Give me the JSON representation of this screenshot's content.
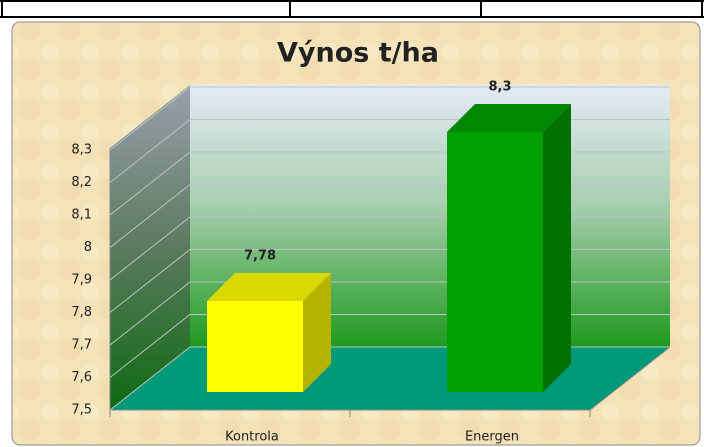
{
  "chart_data": {
    "type": "bar3d",
    "title": "Výnos t/ha",
    "categories": [
      "Kontrola",
      "Energen"
    ],
    "values": [
      7.78,
      8.3
    ],
    "value_labels": [
      "7,78",
      "8,3"
    ],
    "colors": [
      "#ffff00",
      "#00a000"
    ],
    "ylim": [
      7.5,
      8.3
    ],
    "yticks": [
      {
        "value": 7.5,
        "label": "7,5"
      },
      {
        "value": 7.6,
        "label": "7,6"
      },
      {
        "value": 7.7,
        "label": "7,7"
      },
      {
        "value": 7.8,
        "label": "7,8"
      },
      {
        "value": 7.9,
        "label": "7,9"
      },
      8,
      {
        "value": 8.1,
        "label": "8,1"
      },
      {
        "value": 8.2,
        "label": "8,2"
      },
      {
        "value": 8.3,
        "label": "8,3"
      }
    ],
    "grid": true
  }
}
